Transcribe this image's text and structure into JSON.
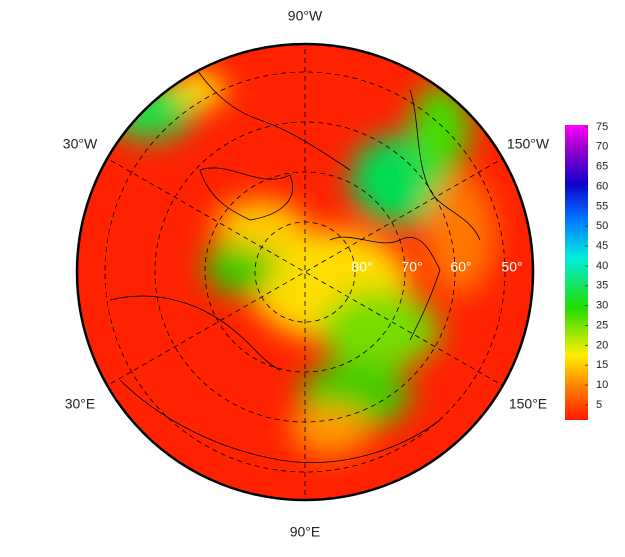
{
  "map": {
    "longitude_labels": [
      "90°W",
      "30°W",
      "150°W",
      "30°E",
      "150°E",
      "90°E"
    ],
    "latitude_labels": [
      "80°",
      "70°",
      "60°",
      "50°"
    ],
    "colorbar": {
      "ylim": [
        1.2,
        75.5
      ],
      "yticks": [
        5,
        10,
        15,
        20,
        25,
        30,
        35,
        40,
        45,
        50,
        55,
        60,
        65,
        70,
        75
      ]
    }
  }
}
